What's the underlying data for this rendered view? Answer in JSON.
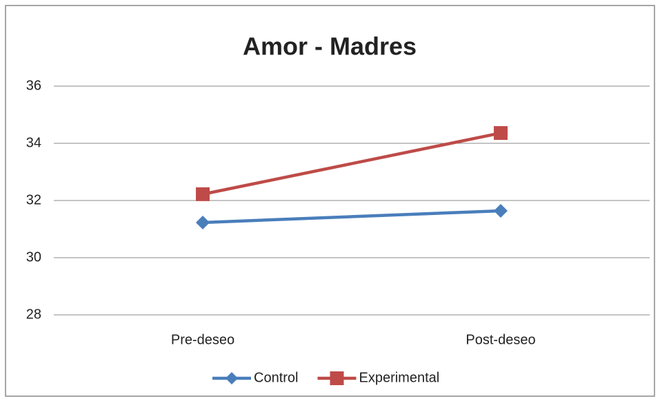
{
  "chart_data": {
    "type": "line",
    "title": "Amor - Madres",
    "categories": [
      "Pre-deseo",
      "Post-deseo"
    ],
    "series": [
      {
        "name": "Control",
        "color": "#4a7ebb",
        "marker": "diamond",
        "values": [
          31.23,
          31.64
        ]
      },
      {
        "name": "Experimental",
        "color": "#be4b48",
        "marker": "square",
        "values": [
          32.22,
          34.36
        ]
      }
    ],
    "ylim": [
      28,
      36
    ],
    "yticks": [
      28,
      30,
      32,
      34,
      36
    ],
    "grid": true,
    "legend": "bottom"
  }
}
